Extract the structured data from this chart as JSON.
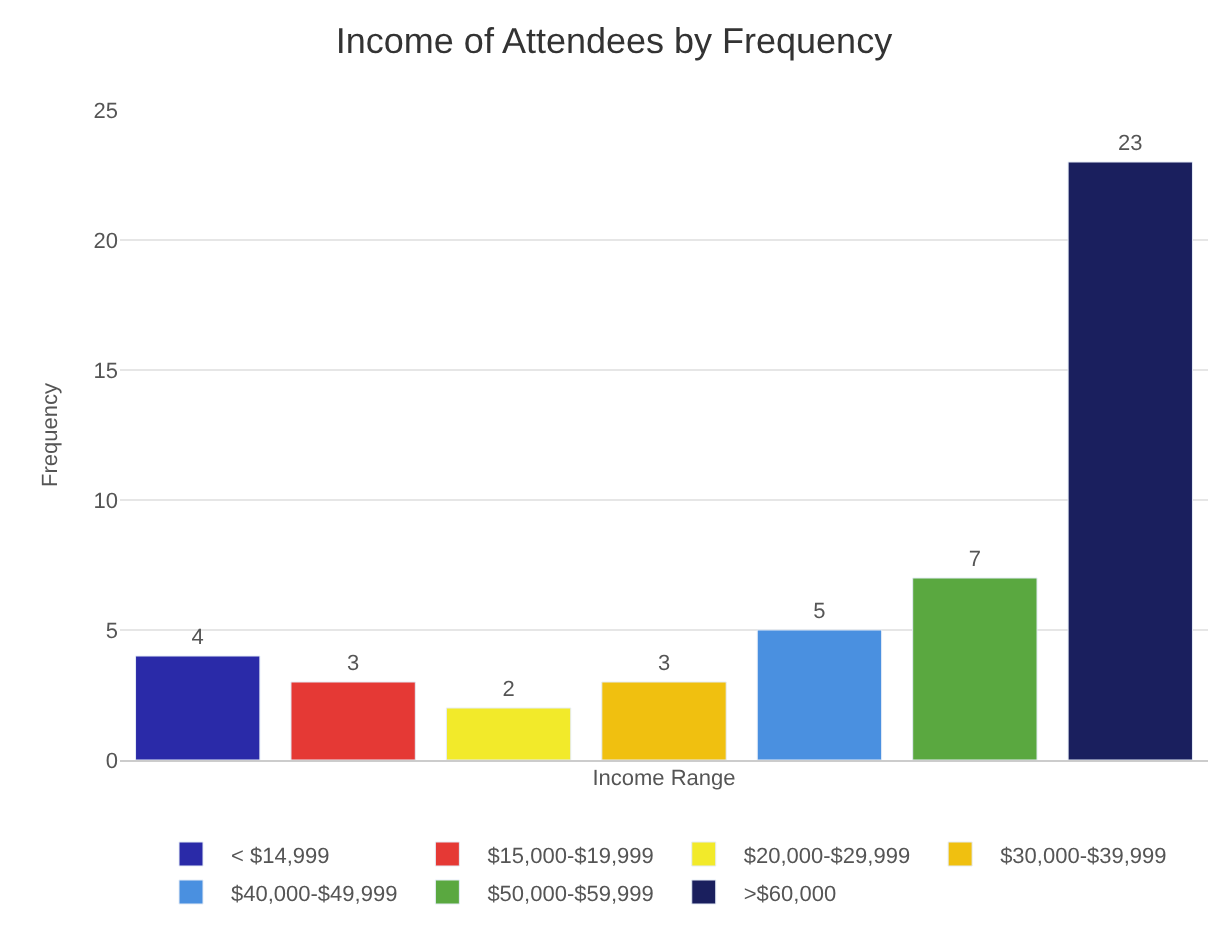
{
  "chart_data": {
    "type": "bar",
    "title": "Income of Attendees by Frequency",
    "xlabel": "Income Range",
    "ylabel": "Frequency",
    "categories": [
      null,
      null,
      null,
      null,
      null,
      null,
      null
    ],
    "series": [
      {
        "name": "< $14,999",
        "color": "#2a2aa8",
        "values": [
          4,
          null,
          null,
          null,
          null,
          null,
          null
        ]
      },
      {
        "name": "$15,000-$19,999",
        "color": "#e53935",
        "values": [
          null,
          3,
          null,
          null,
          null,
          null,
          null
        ]
      },
      {
        "name": "$20,000-$29,999",
        "color": "#f2ea2a",
        "values": [
          null,
          null,
          2,
          null,
          null,
          null,
          null
        ]
      },
      {
        "name": "$30,000-$39,999",
        "color": "#f0c010",
        "values": [
          null,
          null,
          null,
          3,
          null,
          null,
          null
        ]
      },
      {
        "name": "$40,000-$49,999",
        "color": "#4a90e0",
        "values": [
          null,
          null,
          null,
          null,
          5,
          null,
          null
        ]
      },
      {
        "name": "$50,000-$59,999",
        "color": "#5aa840",
        "values": [
          null,
          null,
          null,
          null,
          null,
          7,
          null
        ]
      },
      {
        "name": ">$60,000",
        "color": "#1a1f5e",
        "values": [
          null,
          null,
          null,
          null,
          null,
          null,
          23
        ]
      }
    ],
    "ylim": [
      0,
      25
    ],
    "yticks": [
      0,
      5,
      10,
      15,
      20,
      25
    ],
    "grid": "y",
    "legend": "bottom",
    "data_labels": true
  }
}
